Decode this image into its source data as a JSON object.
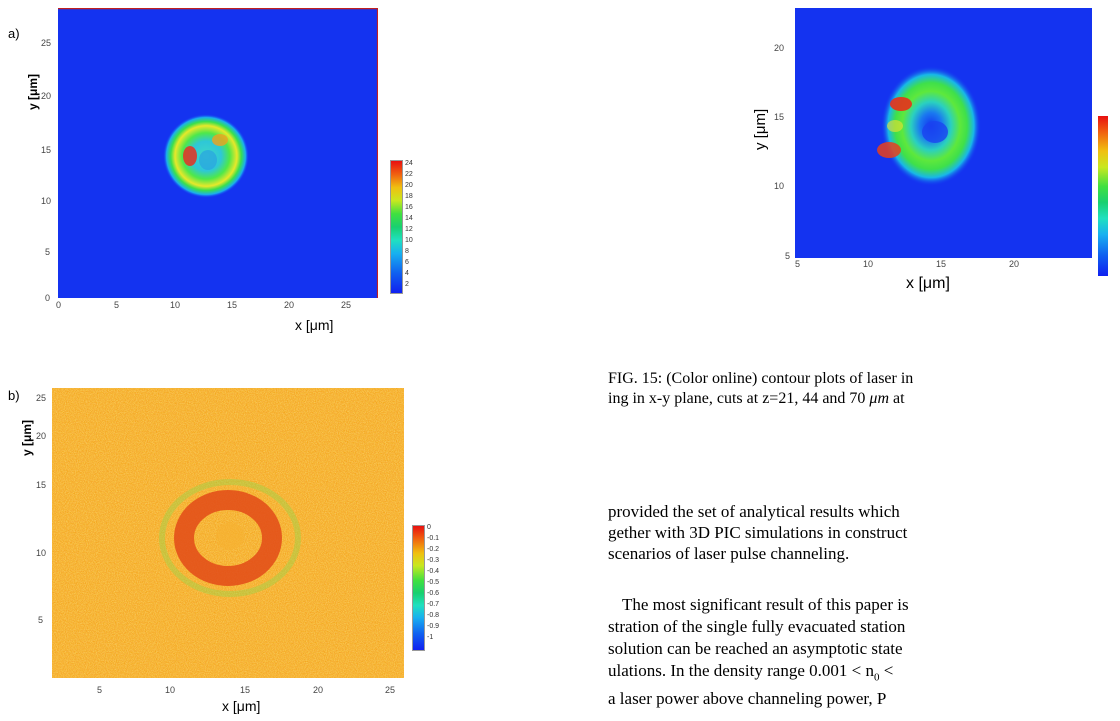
{
  "panels": {
    "a": {
      "letter": "a)",
      "ylabel": "y [μm]",
      "xlabel": "x [μm]",
      "xticks": [
        "0",
        "5",
        "10",
        "15",
        "20",
        "25"
      ],
      "yticks": [
        "0",
        "5",
        "10",
        "15",
        "20",
        "25"
      ],
      "colorbar": [
        "24",
        "22",
        "20",
        "18",
        "16",
        "14",
        "12",
        "10",
        "8",
        "6",
        "4",
        "2"
      ]
    },
    "b": {
      "letter": "b)",
      "ylabel": "y [μm]",
      "xlabel": "x [μm]",
      "xticks": [
        "5",
        "10",
        "15",
        "20",
        "25"
      ],
      "yticks": [
        "5",
        "10",
        "15",
        "20",
        "25"
      ],
      "colorbar": [
        "0",
        "-0.1",
        "-0.2",
        "-0.3",
        "-0.4",
        "-0.5",
        "-0.6",
        "-0.7",
        "-0.8",
        "-0.9",
        "-1"
      ]
    },
    "c": {
      "ylabel": "y [μm]",
      "xlabel": "x [μm]",
      "xticks": [
        "5",
        "10",
        "15",
        "20"
      ],
      "yticks": [
        "10",
        "15",
        "20"
      ],
      "corner_tick": "5"
    }
  },
  "caption": {
    "line1": "FIG. 15: (Color online) contour plots of laser in",
    "line2_pre": "ing in x-y plane, cuts at z=21, 44 and 70 ",
    "line2_unit": "μm",
    "line2_post": " at"
  },
  "body_text": {
    "p1": [
      "provided the set of analytical results which",
      "gether with 3D PIC simulations in construct",
      "scenarios of laser pulse channeling."
    ],
    "p2": [
      "The most significant result of this paper is",
      "stration of the single fully evacuated station",
      "solution can be reached an asymptotic state",
      "ulations. In the density range 0.001 < n",
      "a laser power above channeling power, P"
    ],
    "p2_sub0": "0",
    "p2_lt": " <"
  },
  "colors": {
    "field_blue": "#1433f0",
    "field_orange": "#f4a81e"
  }
}
